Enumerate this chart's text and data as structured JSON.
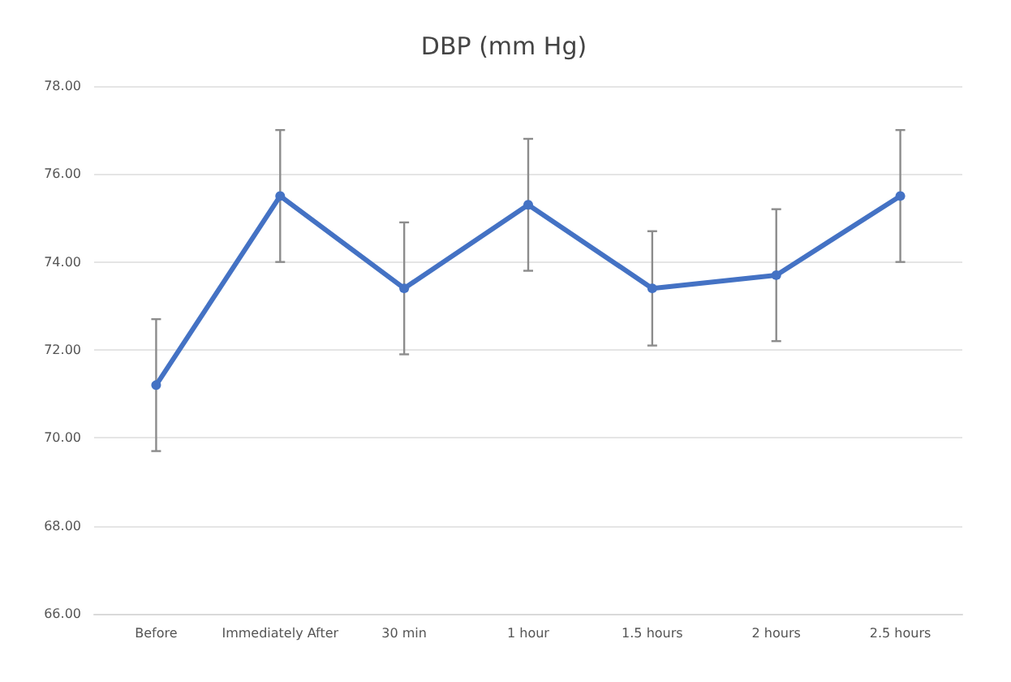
{
  "chart_data": {
    "type": "line",
    "title": "DBP (mm Hg)",
    "categories": [
      "Before",
      "Immediately After",
      "30 min",
      "1 hour",
      "1.5 hours",
      "2 hours",
      "2.5 hours"
    ],
    "series": [
      {
        "color": "#4472c4",
        "values": [
          71.2,
          75.5,
          73.4,
          75.3,
          73.4,
          73.7,
          75.5
        ],
        "errors": [
          1.5,
          1.5,
          1.5,
          1.5,
          1.3,
          1.5,
          1.5
        ]
      }
    ],
    "ylim": [
      66,
      78
    ],
    "yticks": [
      {
        "value": 66,
        "label": "66.00"
      },
      {
        "value": 68,
        "label": "68.00"
      },
      {
        "value": 70,
        "label": "70.00"
      },
      {
        "value": 72,
        "label": "72.00"
      },
      {
        "value": 74,
        "label": "74.00"
      },
      {
        "value": 76,
        "label": "76.00"
      },
      {
        "value": 78,
        "label": "78.00"
      }
    ],
    "grid": "y",
    "marker": "circle",
    "line_style": "solid"
  }
}
